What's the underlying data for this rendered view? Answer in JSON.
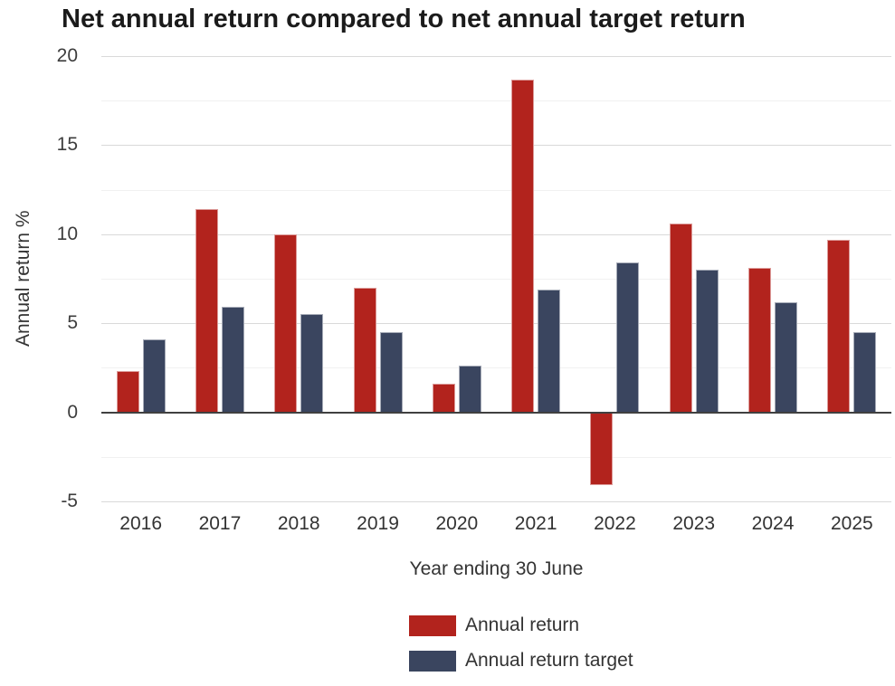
{
  "title": "Net annual return compared to net annual target return",
  "chart_data": {
    "type": "bar",
    "title": "Net annual return compared to net annual target return",
    "categories": [
      "2016",
      "2017",
      "2018",
      "2019",
      "2020",
      "2021",
      "2022",
      "2023",
      "2024",
      "2025"
    ],
    "series": [
      {
        "name": "Annual return",
        "color": "#B2231D",
        "values": [
          2.3,
          11.4,
          10.0,
          7.0,
          1.6,
          18.7,
          -4.1,
          10.6,
          8.1,
          9.7
        ]
      },
      {
        "name": "Annual return target",
        "color": "#3A455F",
        "values": [
          4.1,
          5.9,
          5.5,
          4.5,
          2.6,
          6.9,
          8.4,
          8.0,
          6.2,
          4.5
        ]
      }
    ],
    "xlabel": "Year ending 30 June",
    "ylabel": "Annual return %",
    "ylim": [
      -5,
      20
    ],
    "yticks_major": [
      -5,
      0,
      5,
      10,
      15,
      20
    ],
    "yticks_minor": [
      -2.5,
      2.5,
      7.5,
      12.5,
      17.5
    ],
    "grid": true,
    "legend_position": "bottom",
    "zero_line_color": "#404040",
    "major_grid_color": "#d9d9d9",
    "minor_grid_color": "#f1f1f1"
  }
}
